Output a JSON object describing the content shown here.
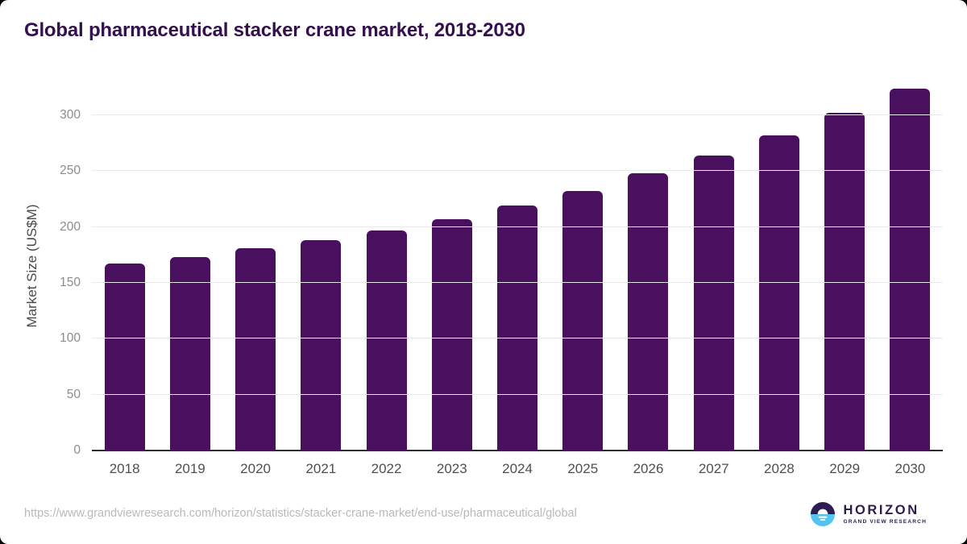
{
  "title": "Global pharmaceutical stacker crane market, 2018-2030",
  "chart_data": {
    "type": "bar",
    "title": "Global pharmaceutical stacker crane market, 2018-2030",
    "categories": [
      "2018",
      "2019",
      "2020",
      "2021",
      "2022",
      "2023",
      "2024",
      "2025",
      "2026",
      "2027",
      "2028",
      "2029",
      "2030"
    ],
    "values": [
      167,
      173,
      181,
      188,
      197,
      207,
      219,
      232,
      248,
      264,
      282,
      302,
      324
    ],
    "xlabel": "",
    "ylabel": "Market Size (US$M)",
    "yticks": [
      0,
      50,
      100,
      150,
      200,
      250,
      300
    ],
    "ylim": [
      0,
      331
    ],
    "grid": true,
    "legend": "none",
    "bar_color": "#4a1060"
  },
  "colors": {
    "bar": "#4a1060",
    "title": "#34104f",
    "grid": "#e9e9e9",
    "axis_line": "#2f2f2f",
    "ytick": "#8c8c8c",
    "xtick": "#4f4f4f",
    "axis_title": "#4a4a4a",
    "url": "#b9b9b9",
    "logo_dark": "#2c1c4f",
    "logo_blue": "#55c3f0"
  },
  "footer": {
    "source_url": "https://www.grandviewresearch.com/horizon/statistics/stacker-crane-market/end-use/pharmaceutical/global",
    "logo": {
      "brand": "HORIZON",
      "sub": "GRAND VIEW RESEARCH"
    }
  }
}
